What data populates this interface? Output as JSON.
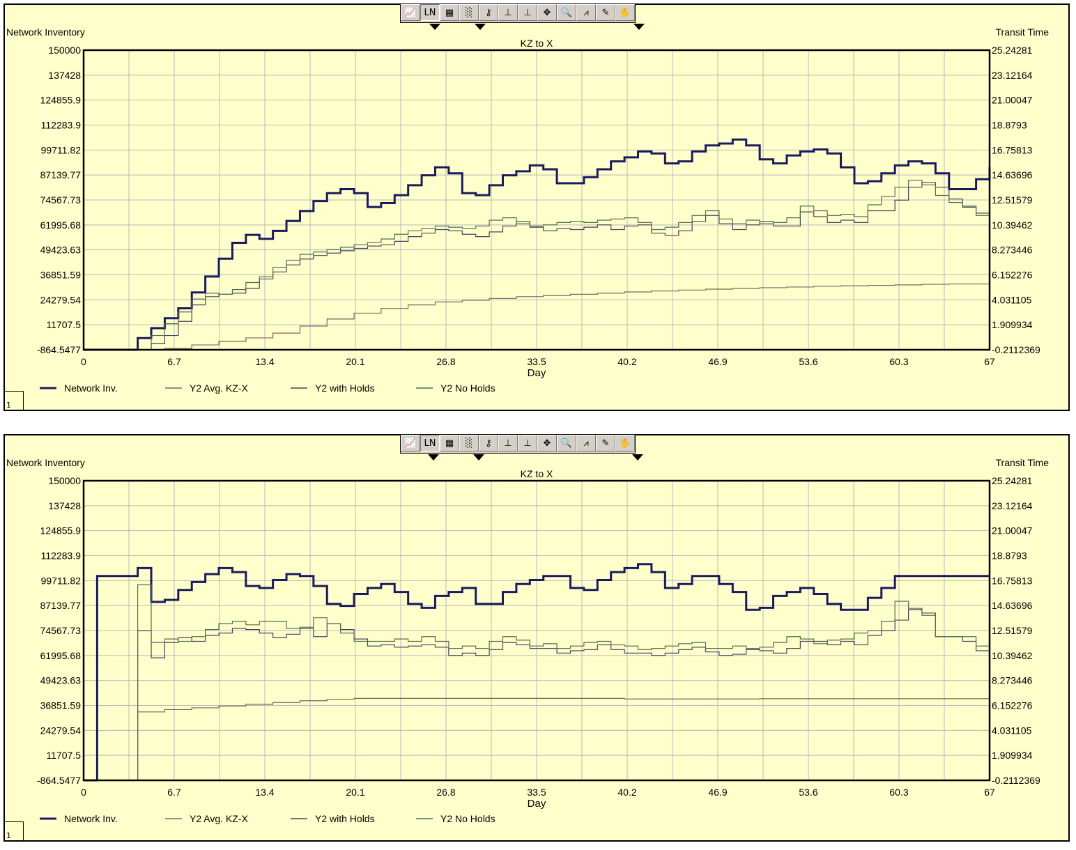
{
  "colors": {
    "background": "#ffffcc",
    "grid": "#b8b8b8",
    "network_inv": "#1a1a5e",
    "y2_avg": "#806060",
    "y2_with_holds": "#4a4060",
    "y2_no_holds": "#4e6e4e"
  },
  "toolbar": {
    "icons": [
      "chart-icon",
      "line-icon",
      "table-icon",
      "grid-icon",
      "key-icon",
      "x-scale-icon",
      "y-scale-icon",
      "xy-scale-icon",
      "zoom-icon",
      "peak-icon",
      "pencil-icon",
      "hand-icon"
    ],
    "glyphs": [
      "📈",
      "LN",
      "▦",
      "░",
      "⚷",
      "⊥",
      "⊥",
      "✥",
      "🔍",
      "⩘",
      "✎",
      "✋"
    ]
  },
  "panels": [
    {
      "id": "1",
      "corner_label": "1"
    },
    {
      "id": "2",
      "corner_label": "1"
    }
  ],
  "chart_data": [
    {
      "type": "line",
      "title": "KZ to X",
      "xlabel": "Day",
      "ylabel": "Network Inventory",
      "y2label": "Transit Time",
      "xlim": [
        0,
        67
      ],
      "ylim": [
        -864.5477,
        150000
      ],
      "y2lim": [
        -0.2112369,
        25.24281
      ],
      "x_ticks": [
        "0",
        "6.7",
        "13.4",
        "20.1",
        "26.8",
        "33.5",
        "40.2",
        "46.9",
        "53.6",
        "60.3",
        "67"
      ],
      "y_ticks": [
        "150000",
        "137428",
        "124855.9",
        "112283.9",
        "99711.82",
        "87139.77",
        "74567.73",
        "61995.68",
        "49423.63",
        "36851.59",
        "24279.54",
        "11707.5",
        "-864.5477"
      ],
      "y2_ticks": [
        "25.24281",
        "23.12164",
        "21.00047",
        "18.8793",
        "16.75813",
        "14.63696",
        "12.51579",
        "10.39462",
        "8.273446",
        "6.152276",
        "4.031105",
        "1.909934",
        "-0.2112369"
      ],
      "grid": true,
      "legend_position": "bottom-left",
      "series": [
        {
          "name": "Network Inv.",
          "axis": "y",
          "step": true,
          "x": [
            0,
            4,
            5,
            6,
            7,
            8,
            9,
            10,
            11,
            12,
            13,
            14,
            15,
            16,
            17,
            18,
            19,
            20,
            21,
            22,
            23,
            24,
            25,
            26,
            27,
            28,
            29,
            30,
            31,
            32,
            33,
            34,
            35,
            36,
            37,
            38,
            39,
            40,
            41,
            42,
            43,
            44,
            45,
            46,
            47,
            48,
            49,
            50,
            51,
            52,
            53,
            54,
            55,
            56,
            57,
            58,
            59,
            60,
            61,
            62,
            63,
            64,
            65,
            66,
            67
          ],
          "values": [
            -864,
            5000,
            10000,
            15000,
            20000,
            28000,
            36000,
            45000,
            53000,
            57000,
            55000,
            59000,
            64000,
            69000,
            74000,
            78000,
            80000,
            78000,
            71000,
            73000,
            77000,
            82000,
            87000,
            91000,
            88000,
            78000,
            77000,
            82000,
            87000,
            89000,
            92000,
            90000,
            83000,
            83000,
            86000,
            90000,
            94000,
            96000,
            99000,
            98000,
            93000,
            94000,
            99000,
            102000,
            103000,
            105000,
            102000,
            95000,
            93000,
            97000,
            99000,
            100000,
            98000,
            91000,
            83000,
            84000,
            88000,
            92000,
            94000,
            93000,
            88000,
            80000,
            80000,
            85000,
            91000
          ]
        },
        {
          "name": "Y2 Avg. KZ-X",
          "axis": "y2",
          "step": true,
          "x": [
            0,
            6,
            8,
            10,
            12,
            14,
            16,
            18,
            20,
            22,
            24,
            26,
            28,
            30,
            32,
            34,
            36,
            38,
            40,
            42,
            44,
            46,
            48,
            50,
            52,
            54,
            56,
            58,
            60,
            62,
            64,
            67
          ],
          "values": [
            -0.21,
            -0.1,
            0.2,
            0.5,
            0.8,
            1.2,
            1.8,
            2.4,
            2.9,
            3.3,
            3.6,
            3.85,
            4.0,
            4.15,
            4.3,
            4.4,
            4.5,
            4.6,
            4.7,
            4.78,
            4.86,
            4.94,
            5.0,
            5.06,
            5.12,
            5.18,
            5.22,
            5.26,
            5.3,
            5.35,
            5.38,
            5.4
          ]
        },
        {
          "name": "Y2 with Holds",
          "axis": "y2",
          "step": true,
          "x": [
            0,
            5,
            6,
            7,
            8,
            9,
            10,
            11,
            12,
            13,
            14,
            15,
            16,
            17,
            18,
            19,
            20,
            21,
            22,
            23,
            24,
            25,
            26,
            27,
            28,
            29,
            30,
            31,
            32,
            33,
            34,
            35,
            36,
            37,
            38,
            39,
            40,
            41,
            42,
            43,
            44,
            45,
            46,
            47,
            48,
            49,
            50,
            51,
            52,
            53,
            54,
            55,
            56,
            57,
            58,
            59,
            60,
            61,
            62,
            63,
            64,
            65,
            66,
            67
          ],
          "values": [
            -0.21,
            0.3,
            1.0,
            2.2,
            3.6,
            4.3,
            4.5,
            4.6,
            5.0,
            5.8,
            6.4,
            7.0,
            7.5,
            7.8,
            8.0,
            8.2,
            8.4,
            8.6,
            8.7,
            9.0,
            9.4,
            9.7,
            10.0,
            9.9,
            9.6,
            9.4,
            9.8,
            10.3,
            10.7,
            10.2,
            9.9,
            10.1,
            10.0,
            10.2,
            10.4,
            10.0,
            10.3,
            10.4,
            9.7,
            9.5,
            9.9,
            10.7,
            11.2,
            10.5,
            10.0,
            10.4,
            10.7,
            10.3,
            10.3,
            11.5,
            11.1,
            10.6,
            10.8,
            10.6,
            11.6,
            11.6,
            12.5,
            13.6,
            14.0,
            13.6,
            12.6,
            11.9,
            11.4,
            10.8
          ]
        },
        {
          "name": "Y2 No Holds",
          "axis": "y2",
          "step": true,
          "x": [
            0,
            5,
            6,
            7,
            8,
            9,
            10,
            11,
            12,
            13,
            14,
            15,
            16,
            17,
            18,
            19,
            20,
            21,
            22,
            23,
            24,
            25,
            26,
            27,
            28,
            29,
            30,
            31,
            32,
            33,
            34,
            35,
            36,
            37,
            38,
            39,
            40,
            41,
            42,
            43,
            44,
            45,
            46,
            47,
            48,
            49,
            50,
            51,
            52,
            53,
            54,
            55,
            56,
            57,
            58,
            59,
            60,
            61,
            62,
            63,
            64,
            65,
            66,
            67
          ],
          "values": [
            -0.21,
            1.0,
            2.0,
            3.0,
            4.1,
            4.6,
            4.5,
            4.9,
            5.5,
            6.0,
            6.8,
            7.4,
            7.9,
            8.1,
            8.3,
            8.5,
            8.7,
            8.9,
            9.2,
            9.6,
            9.9,
            10.1,
            10.3,
            10.2,
            10.1,
            10.3,
            10.8,
            11.0,
            10.5,
            10.3,
            10.4,
            10.6,
            10.7,
            10.6,
            10.8,
            10.9,
            11.0,
            10.6,
            10.0,
            10.2,
            10.6,
            11.2,
            11.6,
            10.9,
            10.5,
            10.8,
            10.5,
            10.6,
            11.0,
            12.0,
            11.6,
            11.2,
            11.3,
            11.1,
            12.1,
            12.8,
            13.6,
            14.2,
            13.8,
            12.9,
            12.3,
            12.0,
            11.2,
            10.3
          ]
        }
      ]
    },
    {
      "type": "line",
      "title": "KZ to X",
      "xlabel": "Day",
      "ylabel": "Network Inventory",
      "y2label": "Transit Time",
      "xlim": [
        0,
        67
      ],
      "ylim": [
        -864.5477,
        150000
      ],
      "y2lim": [
        -0.2112369,
        25.24281
      ],
      "x_ticks": [
        "0",
        "6.7",
        "13.4",
        "20.1",
        "26.8",
        "33.5",
        "40.2",
        "46.9",
        "53.6",
        "60.3",
        "67"
      ],
      "y_ticks": [
        "150000",
        "137428",
        "124855.9",
        "112283.9",
        "99711.82",
        "87139.77",
        "74567.73",
        "61995.68",
        "49423.63",
        "36851.59",
        "24279.54",
        "11707.5",
        "-864.5477"
      ],
      "y2_ticks": [
        "25.24281",
        "23.12164",
        "21.00047",
        "18.8793",
        "16.75813",
        "14.63696",
        "12.51579",
        "10.39462",
        "8.273446",
        "6.152276",
        "4.031105",
        "1.909934",
        "-0.2112369"
      ],
      "grid": true,
      "legend_position": "bottom-left",
      "series": [
        {
          "name": "Network Inv.",
          "axis": "y",
          "step": true,
          "x": [
            0,
            1,
            4,
            5,
            6,
            7,
            8,
            9,
            10,
            11,
            12,
            13,
            14,
            15,
            16,
            17,
            18,
            19,
            20,
            21,
            22,
            23,
            24,
            25,
            26,
            27,
            28,
            29,
            30,
            31,
            32,
            33,
            34,
            35,
            36,
            37,
            38,
            39,
            40,
            41,
            42,
            43,
            44,
            45,
            46,
            47,
            48,
            49,
            50,
            51,
            52,
            53,
            54,
            55,
            56,
            57,
            58,
            59,
            60,
            61,
            62,
            63,
            64,
            65,
            66,
            67
          ],
          "values": [
            -864,
            102000,
            106000,
            89000,
            90000,
            95000,
            99000,
            103000,
            106000,
            104000,
            97000,
            96000,
            100000,
            103000,
            102000,
            97000,
            88000,
            87000,
            93000,
            96000,
            98000,
            94000,
            88000,
            86000,
            92000,
            94000,
            96000,
            88000,
            88000,
            94000,
            98000,
            100000,
            102000,
            102000,
            96000,
            95000,
            100000,
            104000,
            106000,
            108000,
            104000,
            96000,
            98000,
            102000,
            102000,
            98000,
            94000,
            85000,
            86000,
            92000,
            94000,
            96000,
            93000,
            88000,
            85000,
            85000,
            91000,
            96000,
            102000,
            102000,
            102000,
            102000,
            102000,
            102000,
            102000,
            102000
          ]
        },
        {
          "name": "Y2 Avg. KZ-X",
          "axis": "y2",
          "step": true,
          "x": [
            0,
            3.5,
            4,
            6,
            8,
            10,
            12,
            14,
            16,
            18,
            20,
            30,
            40,
            50,
            60,
            67
          ],
          "values": [
            -0.21,
            -0.21,
            5.6,
            5.8,
            5.95,
            6.1,
            6.25,
            6.4,
            6.55,
            6.68,
            6.75,
            6.75,
            6.7,
            6.72,
            6.72,
            6.6
          ]
        },
        {
          "name": "Y2 with Holds",
          "axis": "y2",
          "step": true,
          "x": [
            0,
            4,
            5,
            6,
            7,
            8,
            9,
            10,
            11,
            12,
            13,
            14,
            15,
            16,
            17,
            18,
            19,
            20,
            21,
            22,
            23,
            24,
            25,
            26,
            27,
            28,
            29,
            30,
            31,
            32,
            33,
            34,
            35,
            36,
            37,
            38,
            39,
            40,
            41,
            42,
            43,
            44,
            45,
            46,
            47,
            48,
            49,
            50,
            51,
            52,
            53,
            54,
            55,
            56,
            57,
            58,
            59,
            60,
            61,
            62,
            63,
            64,
            65,
            66,
            67
          ],
          "values": [
            -0.21,
            12.5,
            10.2,
            11.5,
            11.9,
            11.6,
            12.1,
            12.3,
            12.7,
            12.6,
            12.3,
            11.9,
            12.2,
            12.7,
            12.0,
            13.1,
            12.6,
            11.8,
            11.2,
            11.3,
            11.1,
            11.2,
            11.3,
            11.1,
            10.4,
            10.6,
            10.4,
            10.9,
            11.5,
            11.3,
            11.0,
            11.0,
            10.6,
            10.8,
            10.9,
            11.3,
            10.9,
            10.6,
            10.6,
            10.4,
            10.6,
            10.9,
            11.1,
            10.7,
            10.4,
            10.5,
            10.9,
            10.8,
            10.6,
            11.0,
            11.6,
            11.6,
            11.3,
            11.6,
            11.3,
            12.1,
            12.5,
            13.4,
            14.3,
            14.0,
            12.0,
            12.0,
            11.6,
            10.8,
            10.6
          ]
        },
        {
          "name": "Y2 No Holds",
          "axis": "y2",
          "step": true,
          "x": [
            0,
            4,
            5,
            6,
            7,
            8,
            9,
            10,
            11,
            12,
            13,
            14,
            15,
            16,
            17,
            18,
            19,
            20,
            21,
            22,
            23,
            24,
            25,
            26,
            27,
            28,
            29,
            30,
            31,
            32,
            33,
            34,
            35,
            36,
            37,
            38,
            39,
            40,
            41,
            42,
            43,
            44,
            45,
            46,
            47,
            48,
            49,
            50,
            51,
            52,
            53,
            54,
            55,
            56,
            57,
            58,
            59,
            60,
            61,
            62,
            63,
            64,
            65,
            66,
            67
          ],
          "values": [
            -0.21,
            16.4,
            11.5,
            11.8,
            11.6,
            12.0,
            12.6,
            13.1,
            13.3,
            13.0,
            13.3,
            13.3,
            12.7,
            12.8,
            13.6,
            13.1,
            12.3,
            11.6,
            11.6,
            11.6,
            11.8,
            11.6,
            12.0,
            11.6,
            11.0,
            11.2,
            11.0,
            11.6,
            12.0,
            11.7,
            11.2,
            11.4,
            11.0,
            11.2,
            11.5,
            11.6,
            11.3,
            11.2,
            10.9,
            11.0,
            11.2,
            11.4,
            11.5,
            11.0,
            11.0,
            11.2,
            11.0,
            11.1,
            11.5,
            12.0,
            11.8,
            11.4,
            11.7,
            11.8,
            12.3,
            12.5,
            13.3,
            15.0,
            14.4,
            13.8,
            12.0,
            12.0,
            12.0,
            11.2,
            11.0
          ]
        }
      ]
    }
  ]
}
